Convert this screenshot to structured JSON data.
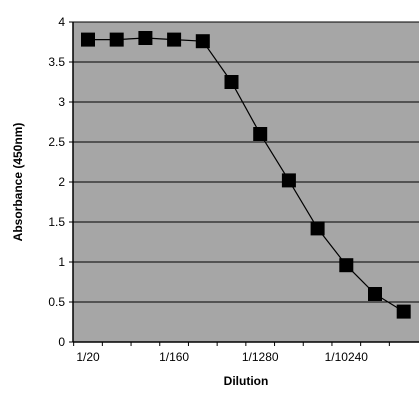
{
  "chart_data": {
    "type": "line",
    "title": "",
    "xlabel": "Dilution",
    "ylabel": "Absorbance (450nm)",
    "ylim": [
      0,
      4
    ],
    "y_ticks": [
      "0",
      "0.5",
      "1",
      "1.5",
      "2",
      "2.5",
      "3",
      "3.5",
      "4"
    ],
    "x_tick_labels": [
      {
        "index": 0,
        "label": "1/20"
      },
      {
        "index": 3,
        "label": "1/160"
      },
      {
        "index": 6,
        "label": "1/1280"
      },
      {
        "index": 9,
        "label": "1/10240"
      }
    ],
    "x_count": 12,
    "grid": true,
    "legend": "none",
    "plot_background": "#a6a6a6",
    "line_color": "#000000",
    "marker": "square",
    "series": [
      {
        "values": [
          3.78,
          3.78,
          3.8,
          3.78,
          3.76,
          3.25,
          2.6,
          2.02,
          1.42,
          0.96,
          0.6,
          0.38
        ]
      }
    ]
  }
}
